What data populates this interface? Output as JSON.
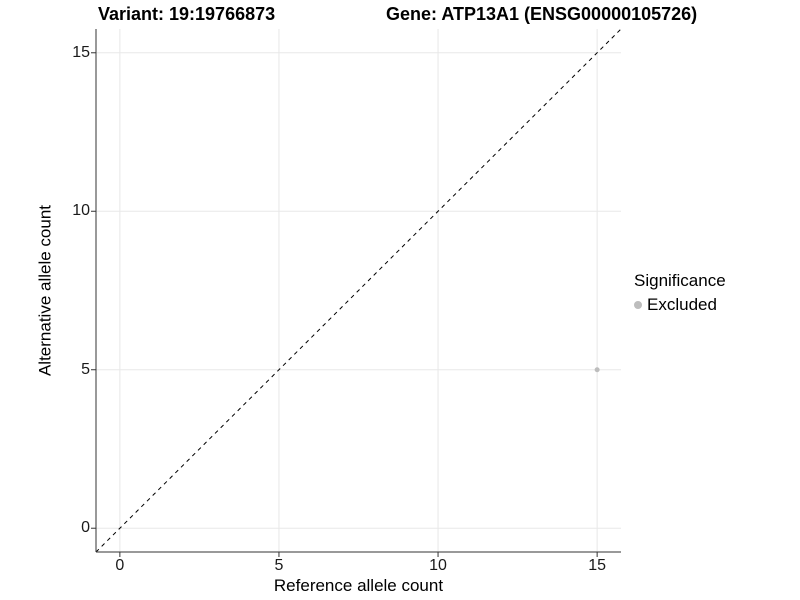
{
  "header": {
    "title_left": "Variant: 19:19766873",
    "title_right": "Gene: ATP13A1 (ENSG00000105726)"
  },
  "chart_data": {
    "type": "scatter",
    "xlabel": "Reference allele count",
    "ylabel": "Alternative allele count",
    "xlim": [
      -0.75,
      15.75
    ],
    "ylim": [
      -0.75,
      15.75
    ],
    "xticks": [
      0,
      5,
      10,
      15
    ],
    "yticks": [
      0,
      5,
      10,
      15
    ],
    "grid": true,
    "points": [
      {
        "x": 15,
        "y": 5,
        "series": "Excluded"
      }
    ],
    "reference_line": {
      "style": "dashed",
      "equation": "y = x",
      "color": "#000000"
    },
    "legend": {
      "title": "Significance",
      "position": "right",
      "entries": [
        {
          "label": "Excluded",
          "color": "#bdbdbd",
          "marker": "circle"
        }
      ]
    },
    "colors": {
      "point": "#bdbdbd",
      "grid": "#e8e8e8",
      "axis": "#333333",
      "tick_text": "#1a1a1a"
    }
  }
}
